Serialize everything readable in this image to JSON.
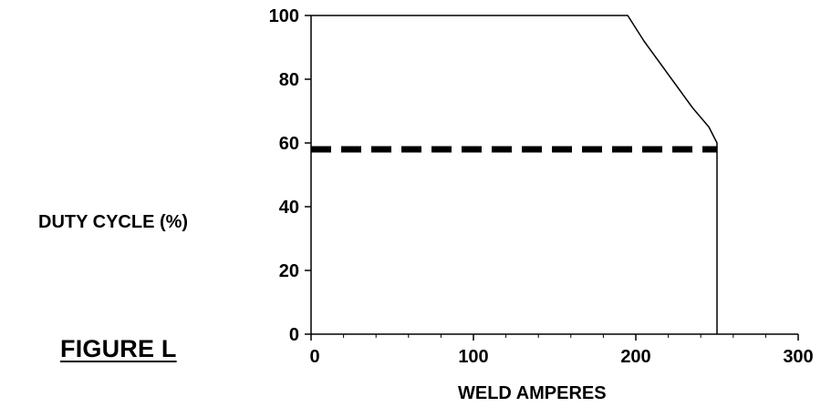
{
  "figure_label": "FIGURE L",
  "colors": {
    "curve": "#000000",
    "dashed": "#000000",
    "background": "#ffffff"
  },
  "chart_data": {
    "type": "line",
    "title": "",
    "xlabel": "WELD AMPERES",
    "ylabel": "DUTY CYCLE (%)",
    "xlim": [
      0,
      300
    ],
    "ylim": [
      0,
      100
    ],
    "x_ticks": [
      0,
      100,
      200,
      300
    ],
    "y_ticks": [
      0,
      20,
      40,
      60,
      80,
      100
    ],
    "x_tick_labels": [
      "0",
      "100",
      "200",
      "300"
    ],
    "y_tick_labels": [
      "0",
      "20",
      "40",
      "60",
      "80",
      "100"
    ],
    "x_minor_tick_step": 20,
    "grid": false,
    "legend": "none",
    "series": [
      {
        "style": "solid",
        "x": [
          0,
          195,
          200,
          205,
          210,
          215,
          220,
          225,
          230,
          235,
          240,
          245,
          250,
          250
        ],
        "y": [
          100,
          100,
          96,
          92,
          88.5,
          85,
          81.5,
          78,
          74.5,
          71,
          68,
          65,
          60,
          0
        ]
      },
      {
        "style": "dashed",
        "x": [
          0,
          250
        ],
        "y": [
          58,
          58
        ]
      }
    ]
  }
}
